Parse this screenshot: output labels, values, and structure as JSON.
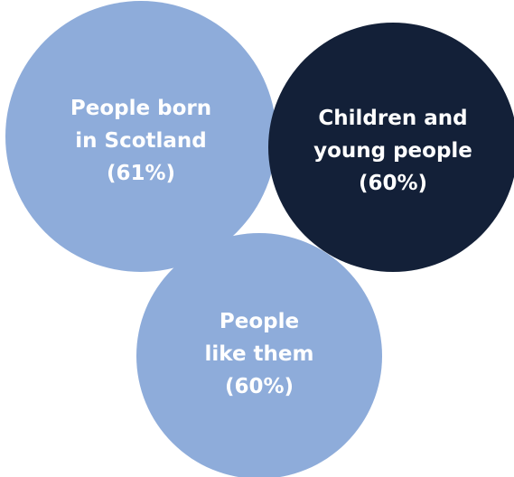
{
  "diagram": {
    "circles": [
      {
        "id": "people-born-in-scotland",
        "lines": [
          "People born",
          "in Scotland",
          "(61%)"
        ],
        "value_percent": 61,
        "color": "#8eacda"
      },
      {
        "id": "children-and-young-people",
        "lines": [
          "Children and",
          "young people",
          "(60%)"
        ],
        "value_percent": 60,
        "color": "#132038"
      },
      {
        "id": "people-like-them",
        "lines": [
          "People",
          "like them",
          "(60%)"
        ],
        "value_percent": 60,
        "color": "#8eacda"
      }
    ]
  }
}
